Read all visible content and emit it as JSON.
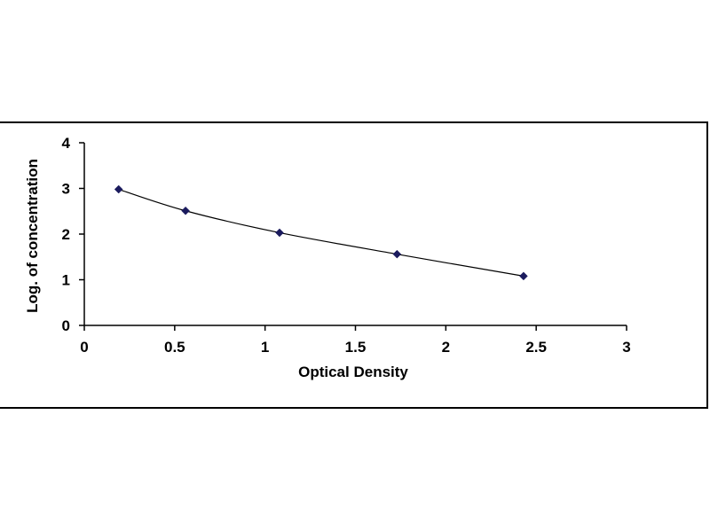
{
  "chart_data": {
    "type": "line",
    "xlabel": "Optical Density",
    "ylabel": "Log. of concentration",
    "xlim": [
      0,
      3
    ],
    "ylim": [
      0,
      4
    ],
    "x_ticks": [
      "0",
      "0.5",
      "1",
      "1.5",
      "2",
      "2.5",
      "3"
    ],
    "y_ticks": [
      "0",
      "1",
      "2",
      "3",
      "4"
    ],
    "grid": false,
    "legend": "none",
    "series": [
      {
        "x": [
          0.19,
          0.56,
          1.08,
          1.73,
          2.43
        ],
        "y": [
          2.98,
          2.51,
          2.03,
          1.56,
          1.08
        ],
        "color": "#1b1b5e",
        "line_color": "#000000",
        "marker": "diamond"
      }
    ]
  }
}
